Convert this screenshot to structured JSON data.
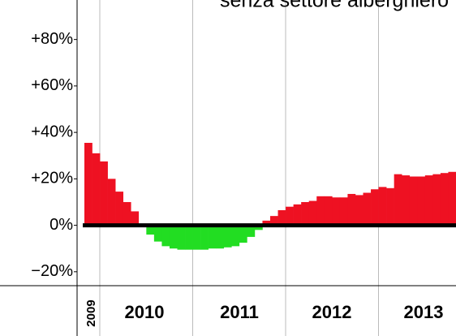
{
  "chart_data": {
    "type": "bar",
    "title": "senza settore alberghiero",
    "categories": [
      null,
      null,
      null,
      null,
      null,
      null,
      null,
      null,
      null,
      null,
      null,
      null,
      null,
      null,
      null,
      null,
      null,
      null,
      null,
      null,
      null,
      null,
      null,
      null,
      null,
      null,
      null,
      null,
      null,
      null,
      null,
      null,
      null,
      null,
      null,
      null,
      null,
      null,
      null,
      null,
      null,
      null,
      null,
      null,
      null,
      null,
      null,
      null
    ],
    "values": [
      35.5,
      31,
      27.5,
      20,
      14.5,
      10,
      6,
      0.5,
      -4,
      -7,
      -9,
      -10,
      -10.5,
      -10.5,
      -10.5,
      -10.5,
      -10,
      -10,
      -9.5,
      -9,
      -7.5,
      -5,
      -2,
      2,
      4,
      6.5,
      8,
      9,
      10,
      10.5,
      12.5,
      12.5,
      12,
      12,
      13.5,
      13,
      14,
      15.5,
      16.5,
      16,
      22,
      21.5,
      21,
      21,
      21.5,
      22,
      22.5,
      23
    ],
    "year_labels": [
      "2009",
      "2010",
      "2011",
      "2012",
      "2013"
    ],
    "colors": {
      "positive": "#ee1122",
      "negative": "#22dd22"
    },
    "ylim": [
      -26,
      97
    ],
    "yticks": [
      {
        "value": 80,
        "label": "+80%"
      },
      {
        "value": 60,
        "label": "+60%"
      },
      {
        "value": 40,
        "label": "+40%"
      },
      {
        "value": 20,
        "label": "+20%"
      },
      {
        "value": 0,
        "label": "0%"
      },
      {
        "value": -20,
        "label": "−20%"
      }
    ],
    "grid": false
  }
}
